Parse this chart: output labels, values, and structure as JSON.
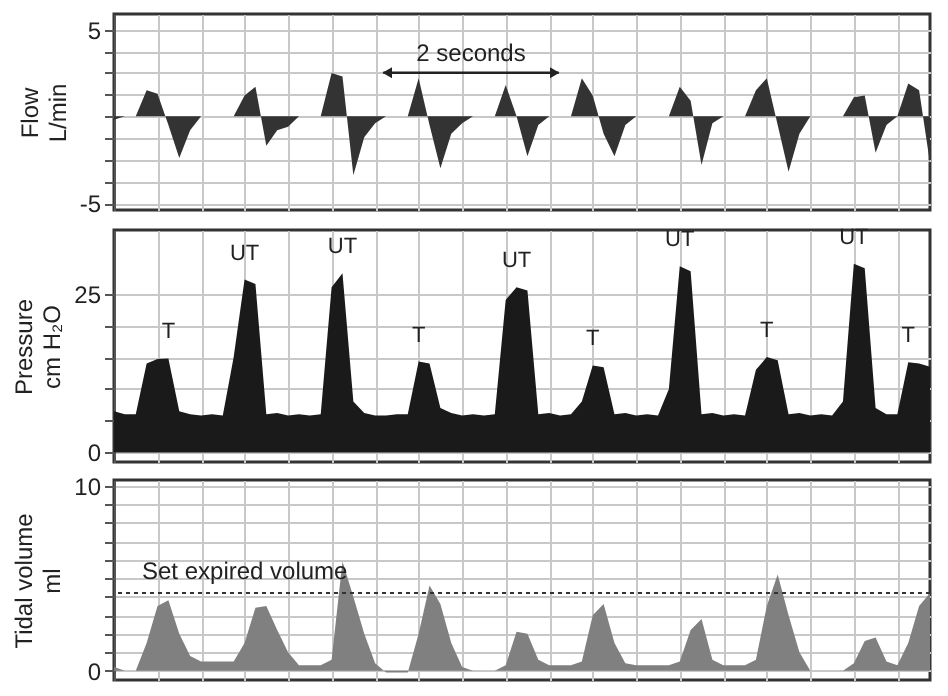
{
  "chart_data": [
    {
      "type": "area",
      "ylabel": "Flow\nL/min",
      "categories": [
        null,
        null,
        null,
        null,
        null,
        null,
        null,
        null,
        null,
        null,
        null,
        null,
        null,
        null,
        null,
        null,
        null,
        null,
        null,
        null,
        null,
        null,
        null,
        null,
        null,
        null,
        null,
        null,
        null,
        null,
        null,
        null,
        null,
        null,
        null,
        null,
        null,
        null,
        null,
        null,
        null,
        null,
        null,
        null,
        null,
        null,
        null,
        null,
        null,
        null,
        null,
        null,
        null,
        null,
        null,
        null,
        null,
        null,
        null,
        null,
        null,
        null,
        null,
        null,
        null,
        null,
        null,
        null,
        null,
        null,
        null,
        null,
        null,
        null,
        null,
        null
      ],
      "series": [
        {
          "color": "#333333",
          "values": [
            -0.2,
            0,
            0,
            1.5,
            1.3,
            -0.5,
            -2.4,
            -0.8,
            0,
            0,
            0,
            0,
            1.2,
            1.7,
            -1.7,
            -0.8,
            -0.6,
            0,
            0,
            0,
            2.5,
            2.3,
            -3.4,
            -1.2,
            -0.4,
            0,
            0,
            0,
            2.2,
            -0.5,
            -3.0,
            -1.0,
            -0.4,
            0,
            0,
            0,
            1.8,
            0,
            -2.3,
            -0.5,
            0,
            0,
            0,
            2.2,
            1.2,
            -1.0,
            -2.3,
            -0.5,
            0,
            0,
            0,
            0,
            1.7,
            0.9,
            -2.8,
            -0.4,
            0,
            0,
            0,
            1.5,
            2.2,
            -0.5,
            -3.2,
            -1.0,
            0,
            0,
            0,
            0,
            1.1,
            1.2,
            -2.1,
            -0.5,
            0,
            1.9,
            1.5,
            -2.7
          ]
        }
      ],
      "ylim": [
        -5.4,
        5.9
      ],
      "yticks": [
        5,
        {
          "value": 3.75,
          "label": null
        },
        {
          "value": 2.5,
          "label": null
        },
        {
          "value": 1.25,
          "label": null
        },
        {
          "value": 0,
          "label": null
        },
        {
          "value": -1.25,
          "label": null
        },
        {
          "value": -2.5,
          "label": null
        },
        {
          "value": -3.75,
          "label": null
        },
        -5
      ],
      "grid": true,
      "annotations": [
        "2 seconds"
      ]
    },
    {
      "type": "area",
      "ylabel": "Pressure\ncm H₂O",
      "categories": [
        null,
        null,
        null,
        null,
        null,
        null,
        null,
        null,
        null,
        null,
        null,
        null,
        null,
        null,
        null,
        null,
        null,
        null,
        null,
        null,
        null,
        null,
        null,
        null,
        null,
        null,
        null,
        null,
        null,
        null,
        null,
        null,
        null,
        null,
        null,
        null,
        null,
        null,
        null,
        null,
        null,
        null,
        null,
        null,
        null,
        null,
        null,
        null,
        null,
        null,
        null,
        null,
        null,
        null,
        null,
        null,
        null,
        null,
        null,
        null,
        null,
        null,
        null,
        null,
        null,
        null,
        null,
        null,
        null,
        null,
        null,
        null,
        null,
        null,
        null,
        null
      ],
      "series": [
        {
          "color": "#1a1a1a",
          "values": [
            6.5,
            6.0,
            6.0,
            14.0,
            14.7,
            14.8,
            6.5,
            6.0,
            5.8,
            6.0,
            5.8,
            15,
            27.2,
            26.5,
            6.0,
            6.2,
            5.8,
            6.0,
            5.8,
            6.0,
            26,
            28.2,
            8,
            6.2,
            5.8,
            5.8,
            6.0,
            6.0,
            14.3,
            14.0,
            7,
            6.2,
            5.8,
            6.0,
            5.8,
            6.0,
            24,
            26,
            25.5,
            6.0,
            6.2,
            5.8,
            6.0,
            8,
            13.7,
            13.4,
            6.0,
            6.2,
            5.8,
            6.0,
            5.8,
            10,
            29.3,
            28.5,
            6.0,
            6.2,
            5.8,
            6.0,
            5.8,
            13,
            15,
            14.5,
            6.0,
            6.2,
            5.8,
            6.0,
            5.8,
            8,
            29.7,
            29,
            7,
            6.0,
            6.0,
            14.2,
            14.0,
            13.5
          ]
        }
      ],
      "ylim": [
        -1.5,
        35
      ],
      "yticks": [
        0,
        {
          "value": 5,
          "label": null
        },
        {
          "value": 10,
          "label": null
        },
        {
          "value": 15,
          "label": null
        },
        {
          "value": 20,
          "label": null
        },
        25
      ],
      "grid": true,
      "annotations": [
        "T",
        "UT",
        "UT",
        "T",
        "UT",
        "T",
        "UT",
        "T",
        "UT",
        "T"
      ]
    },
    {
      "type": "area",
      "ylabel": "Tidal volume\nml",
      "categories": [
        null,
        null,
        null,
        null,
        null,
        null,
        null,
        null,
        null,
        null,
        null,
        null,
        null,
        null,
        null,
        null,
        null,
        null,
        null,
        null,
        null,
        null,
        null,
        null,
        null,
        null,
        null,
        null,
        null,
        null,
        null,
        null,
        null,
        null,
        null,
        null,
        null,
        null,
        null,
        null,
        null,
        null,
        null,
        null,
        null,
        null,
        null,
        null,
        null,
        null,
        null,
        null,
        null,
        null,
        null,
        null,
        null,
        null,
        null,
        null,
        null,
        null,
        null,
        null,
        null,
        null,
        null,
        null,
        null,
        null,
        null,
        null,
        null,
        null,
        null,
        null
      ],
      "series": [
        {
          "color": "#808080",
          "values": [
            0.2,
            0,
            0,
            1.5,
            3.5,
            3.8,
            2.0,
            0.8,
            0.5,
            0.5,
            0.5,
            0.5,
            1.5,
            3.4,
            3.5,
            2.2,
            1.0,
            0.3,
            0.3,
            0.3,
            0.6,
            5.9,
            4.0,
            2.0,
            0.4,
            -0.1,
            -0.1,
            -0.1,
            2.0,
            4.6,
            3.6,
            1.5,
            0.2,
            0,
            0,
            0,
            0.3,
            2.1,
            2.0,
            0.6,
            0.3,
            0.3,
            0.3,
            0.5,
            3.0,
            3.6,
            1.5,
            0.4,
            0.3,
            0.3,
            0.3,
            0.3,
            0.5,
            2.2,
            2.8,
            0.6,
            0.3,
            0.3,
            0.3,
            0.6,
            3.5,
            5.2,
            3.0,
            1.0,
            0,
            0,
            0,
            0,
            0.4,
            1.6,
            1.8,
            0.5,
            0.3,
            1.5,
            3.5,
            4.2
          ]
        }
      ],
      "ylim": [
        -0.5,
        10.3
      ],
      "yticks": [
        10,
        {
          "value": 9,
          "label": null
        },
        {
          "value": 8,
          "label": null
        },
        {
          "value": 7,
          "label": null
        },
        {
          "value": 6,
          "label": null
        },
        {
          "value": 5,
          "label": null
        },
        {
          "value": 4,
          "label": null
        },
        {
          "value": 3,
          "label": null
        },
        {
          "value": 2,
          "label": null
        },
        {
          "value": 1,
          "label": null
        },
        0
      ],
      "grid": true,
      "ref_lines": [
        {
          "axis": "y",
          "value": 4.2,
          "label": "Set expired volume",
          "line_style": "dotted",
          "color": "#333333"
        }
      ]
    }
  ]
}
